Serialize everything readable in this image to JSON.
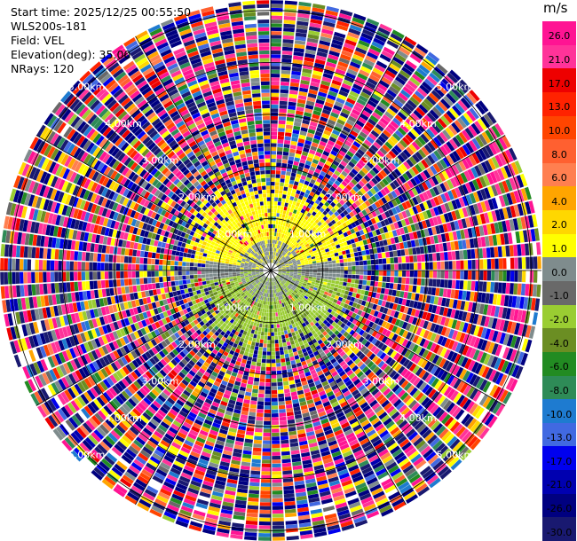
{
  "header": {
    "start_time": "Start time: 2025/12/25 00:55:50",
    "instrument": "WLS200s-181",
    "field": "Field: VEL",
    "elevation": "Elevation(deg): 35.00",
    "nrays": "NRays: 120"
  },
  "chart_data": {
    "type": "heatmap",
    "projection": "polar-ppi",
    "field": "VEL",
    "unit": "m/s",
    "elevation_deg": 35.0,
    "n_rays": 120,
    "max_range_km": 5.2,
    "range_rings_km": [
      1,
      2,
      3,
      4,
      5
    ],
    "ring_labels": [
      "1.00km",
      "2.00km",
      "3.00km",
      "4.00km",
      "5.00km"
    ],
    "azimuth_lines_deg": [
      0,
      30,
      60,
      90,
      120,
      150,
      180,
      210,
      240,
      270,
      300,
      330
    ],
    "colorbar": {
      "unit": "m/s",
      "ticks": [
        "26.0",
        "21.0",
        "17.0",
        "13.0",
        "10.0",
        "8.0",
        "6.0",
        "4.0",
        "2.0",
        "1.0",
        "0.0",
        "-1.0",
        "-2.0",
        "-4.0",
        "-6.0",
        "-8.0",
        "-10.0",
        "-13.0",
        "-17.0",
        "-21.0",
        "-26.0",
        "-30.0"
      ],
      "colors": [
        "#ff1493",
        "#ff3399",
        "#ee0000",
        "#ff2200",
        "#ff4500",
        "#ff6030",
        "#ff7f50",
        "#ffa500",
        "#ffd700",
        "#ffff00",
        "#7f8c8d",
        "#696969",
        "#9acd32",
        "#6b8e23",
        "#228b22",
        "#2e8b57",
        "#1e7bd0",
        "#4169e1",
        "#0000ee",
        "#0000b0",
        "#000080",
        "#191970"
      ]
    },
    "structure": {
      "near_field_positive_upper": "yellow (1–4 m/s)",
      "near_field_center": "gray (0 m/s)",
      "near_field_negative_lower": "olive/yellow-green (-1 to -2 m/s)",
      "far_field": "noise across full color range"
    }
  }
}
